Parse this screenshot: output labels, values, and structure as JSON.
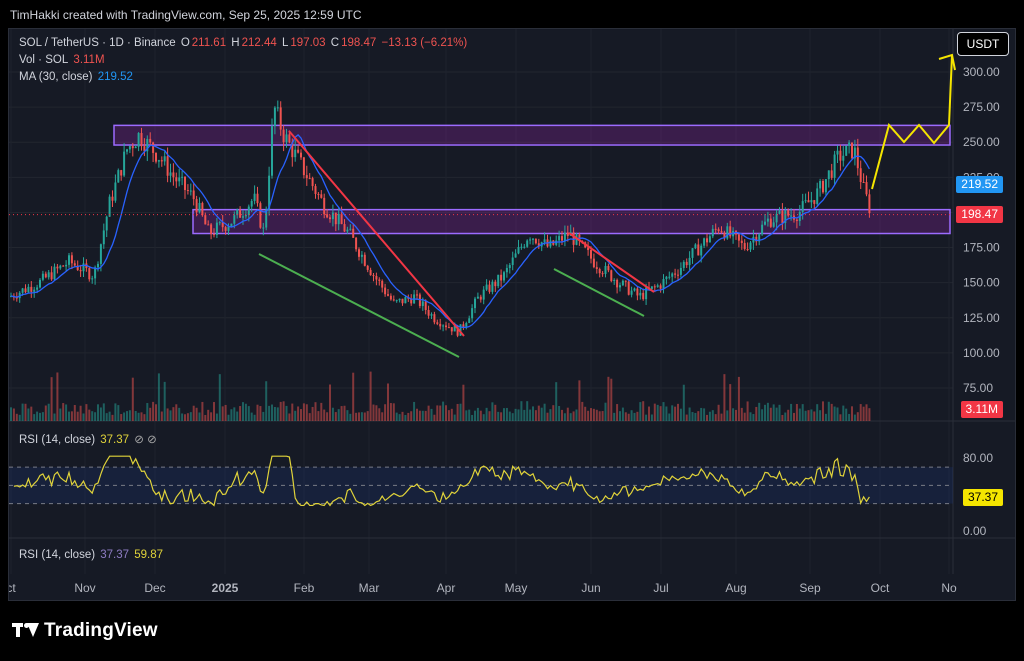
{
  "header": {
    "text": "TimHakki created with TradingView.com, Sep 25, 2025 12:59 UTC"
  },
  "brand": {
    "text": "TradingView"
  },
  "currency_button": "USDT",
  "legend": {
    "symbol": "SOL / TetherUS · 1D · Binance",
    "o_label": "O",
    "o_value": "211.61",
    "h_label": "H",
    "h_value": "212.44",
    "l_label": "L",
    "l_value": "197.03",
    "c_label": "C",
    "c_value": "198.47",
    "change": "−13.13 (−6.21%)",
    "vol_label": "Vol · SOL",
    "vol_value": "3.11M",
    "ma_label": "MA (30, close)",
    "ma_value": "219.52"
  },
  "rsi_legend": {
    "label": "RSI (14, close)",
    "value": "37.37",
    "icons": "⊘ ⊘"
  },
  "rsi_legend2": {
    "label": "RSI (14, close)",
    "value1": "37.37",
    "value2": "59.87"
  },
  "price_badges": {
    "ma": "219.52",
    "close": "198.47",
    "volume": "3.11M",
    "rsi": "37.37"
  },
  "colors": {
    "up": "#26a69a",
    "down": "#ef5350",
    "ma": "#2962ff",
    "zone": "#9c27b0",
    "rsi": "#e0d33a",
    "projection": "#f5e500",
    "downtrend": "#f23645",
    "support": "#4caf50"
  },
  "chart_data": {
    "type": "candlestick",
    "symbol": "SOL / TetherUS",
    "interval": "1D",
    "x_ticks": [
      "ct",
      "Nov",
      "Dec",
      "2025",
      "Feb",
      "Mar",
      "Apr",
      "May",
      "Jun",
      "Jul",
      "Aug",
      "Sep",
      "Oct",
      "No"
    ],
    "y_ticks": [
      75,
      100,
      125,
      150,
      175,
      200,
      225,
      250,
      275,
      300
    ],
    "ylim": [
      60,
      320
    ],
    "last": {
      "open": 211.61,
      "high": 212.44,
      "low": 197.03,
      "close": 198.47,
      "change": -13.13,
      "change_pct": -6.21
    },
    "price_series": {
      "name": "",
      "months": [
        "Oct",
        "Nov",
        "Dec",
        "Jan",
        "Feb",
        "Mar",
        "Apr",
        "May",
        "Jun",
        "Jul",
        "Aug",
        "Sep"
      ],
      "approx_close": [
        150,
        175,
        235,
        215,
        240,
        190,
        130,
        165,
        165,
        155,
        180,
        235
      ]
    },
    "ma_30": {
      "last": 219.52
    },
    "volume_last": "3.11M",
    "zones": [
      {
        "from": 248,
        "to": 262
      },
      {
        "from": 185,
        "to": 202
      }
    ],
    "rsi": {
      "period": 14,
      "value": 37.37,
      "upper": 70,
      "lower": 30,
      "y_ticks": [
        0.0,
        80.0
      ]
    }
  }
}
